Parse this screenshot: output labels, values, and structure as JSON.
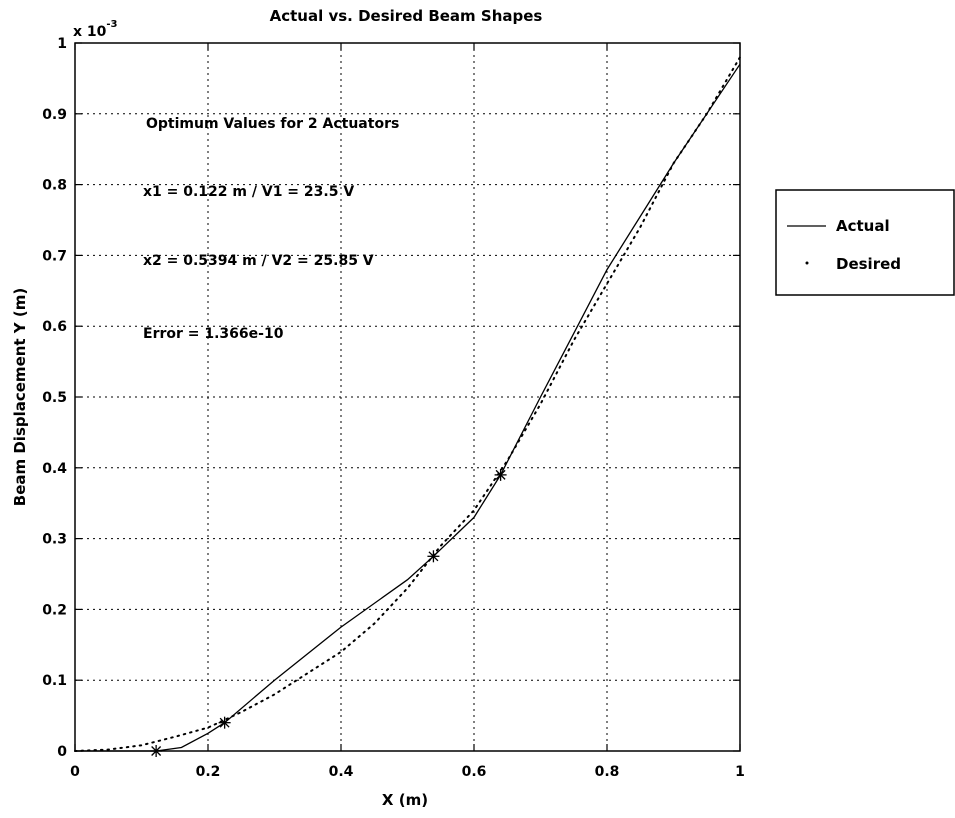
{
  "chart_data": {
    "type": "line",
    "title": "Actual vs. Desired Beam Shapes",
    "xlabel": "X (m)",
    "ylabel": "Beam Displacement Y (m)",
    "y_multiplier": "x 10",
    "y_multiplier_exponent": "-3",
    "xlim": [
      0,
      1
    ],
    "ylim": [
      0,
      1
    ],
    "y_scale_factor": 0.001,
    "x_ticks": [
      "0",
      "0.2",
      "0.4",
      "0.6",
      "0.8",
      "1"
    ],
    "y_ticks": [
      "0",
      "0.1",
      "0.2",
      "0.3",
      "0.4",
      "0.5",
      "0.6",
      "0.7",
      "0.8",
      "0.9",
      "1"
    ],
    "grid": true,
    "legend_position": "outside-right",
    "annotations": [
      "Optimum Values for 2 Actuators",
      "x1 = 0.122 m  / V1 = 23.5 V",
      "x2 = 0.5394 m  / V2 = 25.85 V",
      "Error = 1.366e-10"
    ],
    "series": [
      {
        "name": "Actual",
        "style": "solid",
        "x": [
          0.0,
          0.1,
          0.122,
          0.16,
          0.2,
          0.225,
          0.3,
          0.4,
          0.5,
          0.539,
          0.6,
          0.64,
          0.7,
          0.75,
          0.8,
          0.9,
          1.0
        ],
        "y": [
          0.0,
          0.0,
          0.0,
          0.005,
          0.025,
          0.04,
          0.1,
          0.175,
          0.242,
          0.275,
          0.33,
          0.39,
          0.5,
          0.59,
          0.68,
          0.83,
          0.97
        ]
      },
      {
        "name": "Desired",
        "style": "dotted",
        "x": [
          0.0,
          0.05,
          0.1,
          0.15,
          0.2,
          0.25,
          0.3,
          0.35,
          0.4,
          0.45,
          0.5,
          0.55,
          0.6,
          0.65,
          0.7,
          0.75,
          0.8,
          0.85,
          0.9,
          0.95,
          1.0
        ],
        "y": [
          0.0,
          0.002,
          0.008,
          0.02,
          0.033,
          0.055,
          0.08,
          0.11,
          0.14,
          0.18,
          0.23,
          0.29,
          0.34,
          0.41,
          0.49,
          0.58,
          0.66,
          0.74,
          0.83,
          0.9,
          0.98
        ]
      }
    ],
    "markers": {
      "symbol": "*",
      "points": [
        {
          "x": 0.122,
          "y": 0.0
        },
        {
          "x": 0.225,
          "y": 0.04
        },
        {
          "x": 0.539,
          "y": 0.275
        },
        {
          "x": 0.64,
          "y": 0.39
        }
      ]
    },
    "colors": {
      "line": "#000000",
      "background": "#ffffff",
      "grid": "#000000"
    }
  }
}
